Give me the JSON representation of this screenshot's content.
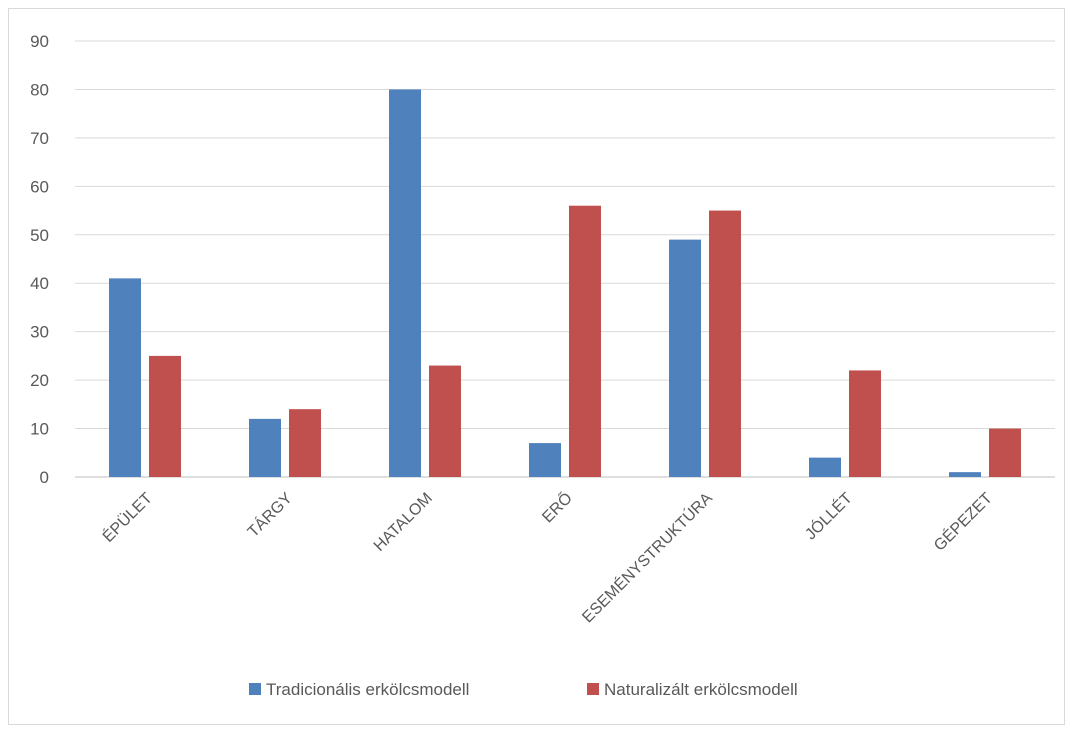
{
  "chart_data": {
    "type": "bar",
    "categories": [
      "ÉPÜLET",
      "TÁRGY",
      "HATALOM",
      "ERŐ",
      "ESEMÉNYSTRUKTÚRA",
      "JÓLLÉT",
      "GÉPEZET"
    ],
    "series": [
      {
        "name": "Tradicionális erkölcsmodell",
        "color": "#4f81bd",
        "values": [
          41,
          12,
          80,
          7,
          49,
          4,
          1
        ]
      },
      {
        "name": "Naturalizált erkölcsmodell",
        "color": "#c0504d",
        "values": [
          25,
          14,
          23,
          56,
          55,
          22,
          10
        ]
      }
    ],
    "yticks": [
      0,
      10,
      20,
      30,
      40,
      50,
      60,
      70,
      80,
      90
    ],
    "ylim": [
      0,
      90
    ],
    "grid": true,
    "legend_position": "bottom",
    "title": "",
    "xlabel": "",
    "ylabel": ""
  }
}
